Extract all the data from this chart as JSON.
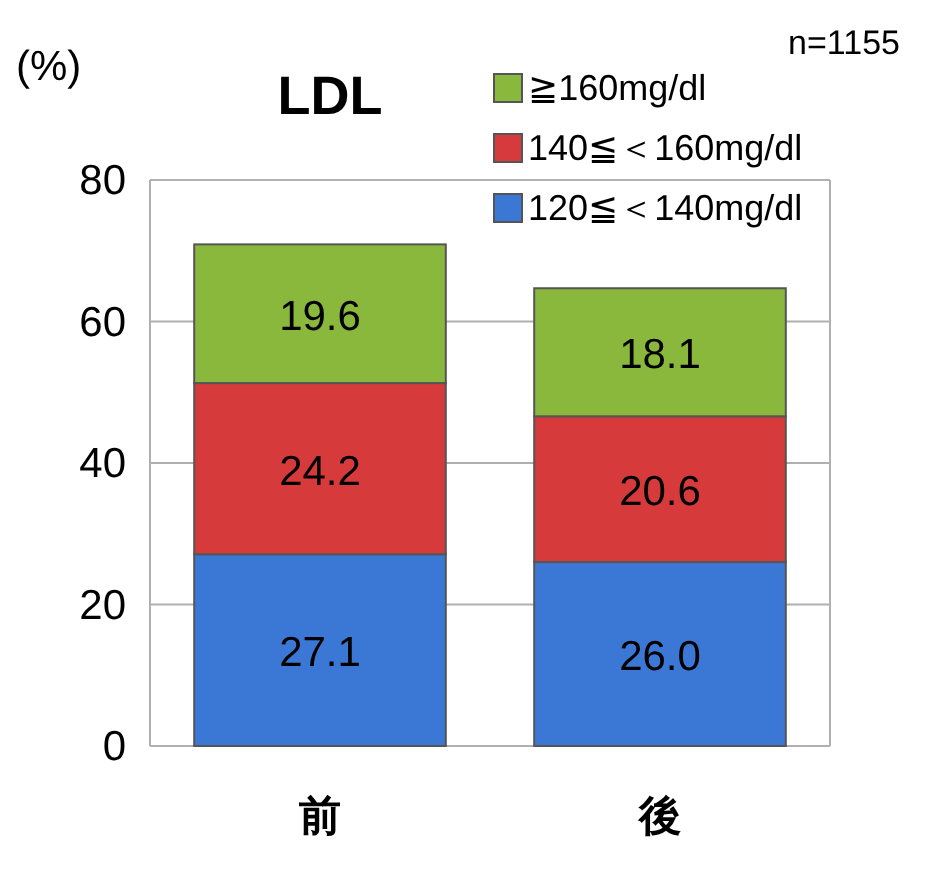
{
  "chart_data": {
    "type": "bar",
    "stacked": true,
    "title": "LDL",
    "ylabel": "(%)",
    "annotations": [
      "n=1155"
    ],
    "categories": [
      "前",
      "後"
    ],
    "series": [
      {
        "name": "120≦＜140mg/dl",
        "color": "#3b78d6",
        "values": [
          27.1,
          26.0
        ],
        "value_labels": [
          "27.1",
          "26.0"
        ]
      },
      {
        "name": "140≦＜160mg/dl",
        "color": "#d63a3a",
        "values": [
          24.2,
          20.6
        ],
        "value_labels": [
          "24.2",
          "20.6"
        ]
      },
      {
        "name": "≧160mg/dl",
        "color": "#8ab83c",
        "values": [
          19.6,
          18.1
        ],
        "value_labels": [
          "19.6",
          "18.1"
        ]
      }
    ],
    "ylim": [
      0,
      80
    ],
    "yticks": [
      0,
      20,
      40,
      60,
      80
    ],
    "grid": "y",
    "legend": "top right"
  }
}
